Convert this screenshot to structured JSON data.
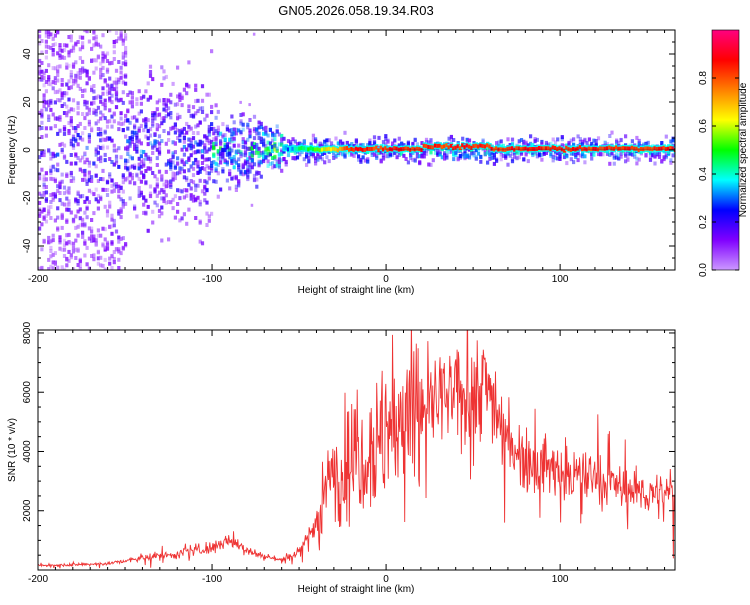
{
  "title": "GN05.2026.058.19.34.R03",
  "chart_data": [
    {
      "type": "heatmap",
      "name": "spectrogram",
      "xlabel": "Height of straight line (km)",
      "ylabel": "Frequency (Hz)",
      "xlim": [
        -200,
        166
      ],
      "ylim": [
        -50,
        50
      ],
      "xticks": [
        -200,
        -100,
        0,
        100
      ],
      "yticks": [
        -40,
        -20,
        0,
        20,
        40
      ],
      "colorbar": {
        "label": "Normalized spectral amplitude",
        "range": [
          0,
          1
        ],
        "ticks": [
          0.0,
          0.2,
          0.4,
          0.6,
          0.8
        ],
        "colormap": [
          "#cc99ff",
          "#8000ff",
          "#0000ff",
          "#00ffff",
          "#00ff00",
          "#ffff00",
          "#ff8000",
          "#ff0000",
          "#ff0080"
        ]
      },
      "ridge_frequency_hz": 0,
      "ridge_start_km": -60,
      "ridge_peak_amplitude": 0.9,
      "noise_band_km": [
        -200,
        -150
      ]
    },
    {
      "type": "line",
      "name": "snr",
      "xlabel": "Height of straight line (km)",
      "ylabel": "SNR (10 * v/v)",
      "xlim": [
        -200,
        166
      ],
      "ylim": [
        0,
        8100
      ],
      "xticks": [
        -200,
        -100,
        0,
        100
      ],
      "yticks": [
        2000,
        4000,
        6000,
        8000
      ],
      "color": "#ee3333",
      "series": [
        {
          "name": "SNR",
          "x": [
            -200,
            -180,
            -160,
            -150,
            -140,
            -120,
            -100,
            -90,
            -80,
            -70,
            -60,
            -50,
            -40,
            -35,
            -30,
            -20,
            -10,
            0,
            10,
            20,
            30,
            40,
            50,
            55,
            60,
            65,
            70,
            80,
            90,
            100,
            110,
            120,
            130,
            140,
            150,
            160,
            166
          ],
          "y": [
            150,
            170,
            220,
            300,
            400,
            550,
            750,
            1000,
            700,
            450,
            350,
            600,
            1700,
            2600,
            3200,
            3800,
            4200,
            4600,
            5100,
            5500,
            5700,
            5800,
            6000,
            6300,
            6100,
            5200,
            4500,
            3800,
            3500,
            3300,
            3200,
            3100,
            2900,
            2700,
            2600,
            2500,
            2450
          ]
        }
      ]
    }
  ]
}
